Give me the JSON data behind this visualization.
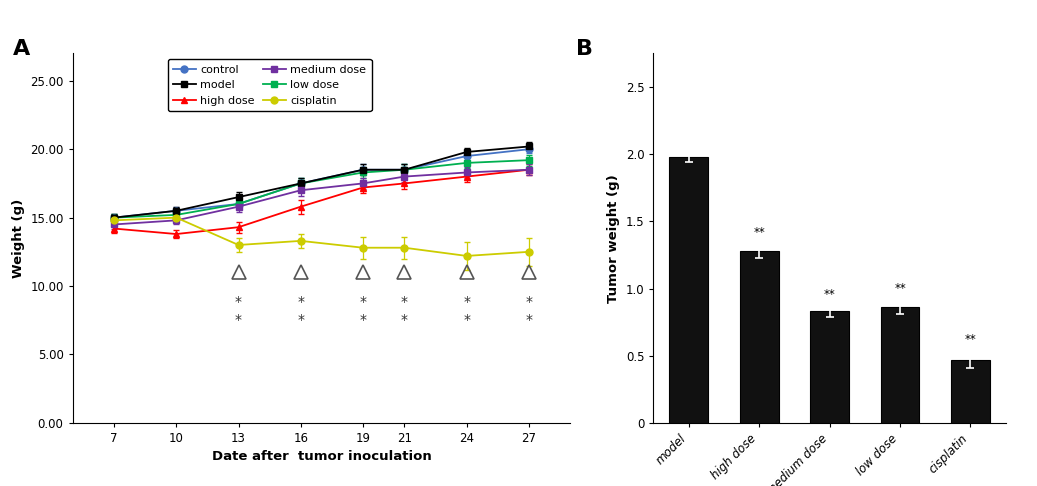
{
  "panel_A": {
    "xlabel": "Date after  tumor inoculation",
    "ylabel": "Weight (g)",
    "title": "A",
    "x": [
      7,
      10,
      13,
      16,
      19,
      21,
      24,
      27
    ],
    "ylim": [
      0,
      27
    ],
    "yticks": [
      0.0,
      5.0,
      10.0,
      15.0,
      20.0,
      25.0
    ],
    "ytick_labels": [
      "0.00",
      "5.00",
      "10.00",
      "15.00",
      "20.00",
      "25.00"
    ],
    "series_order": [
      "control",
      "high_dose",
      "low_dose",
      "model",
      "medium_dose",
      "cisplatin"
    ],
    "series": {
      "control": {
        "y": [
          15.0,
          15.5,
          16.0,
          17.5,
          18.5,
          18.5,
          19.5,
          20.0
        ],
        "yerr": [
          0.3,
          0.3,
          0.4,
          0.4,
          0.4,
          0.4,
          0.3,
          0.3
        ],
        "color": "#4472C4",
        "marker": "o",
        "markersize": 5,
        "label": "control"
      },
      "high_dose": {
        "y": [
          14.2,
          13.8,
          14.3,
          15.8,
          17.2,
          17.5,
          18.0,
          18.5
        ],
        "yerr": [
          0.3,
          0.3,
          0.4,
          0.5,
          0.4,
          0.4,
          0.4,
          0.4
        ],
        "color": "#FF0000",
        "marker": "^",
        "markersize": 5,
        "label": "high dose"
      },
      "low_dose": {
        "y": [
          15.0,
          15.2,
          16.0,
          17.5,
          18.3,
          18.5,
          19.0,
          19.2
        ],
        "yerr": [
          0.3,
          0.3,
          0.4,
          0.4,
          0.4,
          0.4,
          0.4,
          0.4
        ],
        "color": "#00B050",
        "marker": "s",
        "markersize": 5,
        "label": "low dose"
      },
      "model": {
        "y": [
          15.0,
          15.5,
          16.5,
          17.5,
          18.5,
          18.5,
          19.8,
          20.2
        ],
        "yerr": [
          0.3,
          0.3,
          0.4,
          0.4,
          0.4,
          0.4,
          0.3,
          0.3
        ],
        "color": "#000000",
        "marker": "s",
        "markersize": 5,
        "label": "model"
      },
      "medium_dose": {
        "y": [
          14.5,
          14.8,
          15.8,
          17.0,
          17.5,
          18.0,
          18.3,
          18.5
        ],
        "yerr": [
          0.3,
          0.3,
          0.4,
          0.4,
          0.4,
          0.4,
          0.4,
          0.4
        ],
        "color": "#7030A0",
        "marker": "s",
        "markersize": 5,
        "label": "medium dose"
      },
      "cisplatin": {
        "y": [
          14.8,
          15.0,
          13.0,
          13.3,
          12.8,
          12.8,
          12.2,
          12.5
        ],
        "yerr": [
          0.3,
          0.3,
          0.5,
          0.5,
          0.8,
          0.8,
          1.0,
          1.0
        ],
        "color": "#CCCC00",
        "marker": "o",
        "markersize": 5,
        "label": "cisplatin"
      }
    },
    "triangle_x": [
      13,
      16,
      19,
      21,
      24,
      27
    ],
    "triangle_y": [
      11.0,
      11.0,
      11.0,
      11.0,
      11.0,
      11.0
    ],
    "star1_x": [
      13,
      16,
      19,
      21,
      24,
      27
    ],
    "star1_y": [
      8.8,
      8.8,
      8.8,
      8.8,
      8.8,
      8.8
    ],
    "star2_x": [
      13,
      16,
      19,
      21,
      24,
      27
    ],
    "star2_y": [
      7.5,
      7.5,
      7.5,
      7.5,
      7.5,
      7.5
    ]
  },
  "panel_B": {
    "xlabel": "",
    "ylabel": "Tumor weight (g)",
    "title": "B",
    "categories": [
      "model",
      "high dose",
      "medium dose",
      "low dose",
      "cisplatin"
    ],
    "values": [
      1.98,
      1.28,
      0.83,
      0.86,
      0.47
    ],
    "yerr": [
      0.04,
      0.05,
      0.04,
      0.05,
      0.06
    ],
    "bar_color": "#111111",
    "ylim": [
      0,
      2.75
    ],
    "yticks": [
      0,
      0.5,
      1.0,
      1.5,
      2.0,
      2.5
    ],
    "significance": [
      "",
      "**",
      "**",
      "**",
      "**"
    ]
  }
}
